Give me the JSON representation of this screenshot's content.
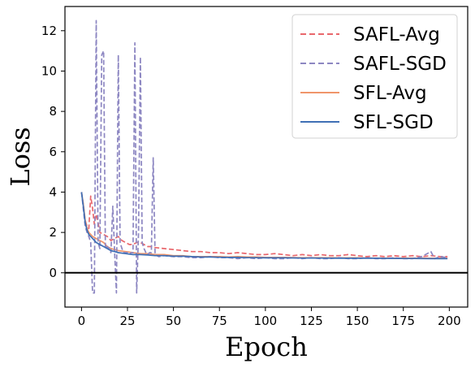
{
  "chart_data": {
    "type": "line",
    "xlabel": "Epoch",
    "ylabel": "Loss",
    "xlim": [
      -9,
      210
    ],
    "ylim": [
      -1.7,
      13.2
    ],
    "xticks": [
      0,
      25,
      50,
      75,
      100,
      125,
      150,
      175,
      200
    ],
    "yticks": [
      0,
      2,
      4,
      6,
      8,
      10,
      12
    ],
    "hline": 0,
    "legend_position": "top-right",
    "grid": false,
    "series": [
      {
        "name": "SAFL-Avg",
        "color": "#e9676c",
        "dash": "dashed",
        "points": [
          [
            0,
            4.0
          ],
          [
            1,
            3.4
          ],
          [
            2,
            2.6
          ],
          [
            3,
            2.3
          ],
          [
            4,
            2.2
          ],
          [
            5,
            3.8
          ],
          [
            6,
            3.2
          ],
          [
            7,
            2.4
          ],
          [
            8,
            2.9
          ],
          [
            9,
            2.5
          ],
          [
            10,
            2.0
          ],
          [
            12,
            1.9
          ],
          [
            14,
            1.8
          ],
          [
            16,
            1.6
          ],
          [
            18,
            1.7
          ],
          [
            20,
            1.8
          ],
          [
            22,
            1.6
          ],
          [
            24,
            1.5
          ],
          [
            26,
            1.4
          ],
          [
            28,
            1.4
          ],
          [
            30,
            1.5
          ],
          [
            32,
            1.5
          ],
          [
            34,
            1.4
          ],
          [
            36,
            1.3
          ],
          [
            38,
            1.3
          ],
          [
            40,
            1.25
          ],
          [
            45,
            1.2
          ],
          [
            50,
            1.15
          ],
          [
            55,
            1.1
          ],
          [
            60,
            1.05
          ],
          [
            65,
            1.05
          ],
          [
            70,
            1.0
          ],
          [
            75,
            1.0
          ],
          [
            80,
            0.95
          ],
          [
            85,
            1.0
          ],
          [
            90,
            0.95
          ],
          [
            95,
            0.9
          ],
          [
            100,
            0.9
          ],
          [
            105,
            0.95
          ],
          [
            110,
            0.9
          ],
          [
            115,
            0.85
          ],
          [
            120,
            0.9
          ],
          [
            125,
            0.85
          ],
          [
            130,
            0.9
          ],
          [
            135,
            0.85
          ],
          [
            140,
            0.85
          ],
          [
            145,
            0.9
          ],
          [
            150,
            0.85
          ],
          [
            155,
            0.8
          ],
          [
            160,
            0.85
          ],
          [
            165,
            0.8
          ],
          [
            170,
            0.85
          ],
          [
            175,
            0.8
          ],
          [
            180,
            0.85
          ],
          [
            185,
            0.8
          ],
          [
            190,
            0.85
          ],
          [
            195,
            0.8
          ],
          [
            199,
            0.8
          ]
        ]
      },
      {
        "name": "SAFL-SGD",
        "color": "#8d87c2",
        "dash": "dashed",
        "points": [
          [
            0,
            4.0
          ],
          [
            2,
            2.3
          ],
          [
            3,
            2.0
          ],
          [
            4,
            1.8
          ],
          [
            5,
            1.5
          ],
          [
            6,
            -1.0
          ],
          [
            7,
            -1.0
          ],
          [
            8,
            12.5
          ],
          [
            9,
            1.5
          ],
          [
            10,
            1.2
          ],
          [
            11,
            10.8
          ],
          [
            12,
            11.0
          ],
          [
            13,
            1.2
          ],
          [
            14,
            1.3
          ],
          [
            15,
            1.2
          ],
          [
            16,
            1.0
          ],
          [
            17,
            3.3
          ],
          [
            18,
            1.0
          ],
          [
            19,
            -1.0
          ],
          [
            20,
            10.8
          ],
          [
            21,
            1.5
          ],
          [
            22,
            1.2
          ],
          [
            23,
            1.0
          ],
          [
            24,
            1.0
          ],
          [
            25,
            1.0
          ],
          [
            26,
            0.9
          ],
          [
            27,
            1.0
          ],
          [
            28,
            1.0
          ],
          [
            29,
            11.4
          ],
          [
            30,
            -1.0
          ],
          [
            31,
            2.0
          ],
          [
            32,
            10.7
          ],
          [
            33,
            1.5
          ],
          [
            34,
            1.2
          ],
          [
            35,
            1.0
          ],
          [
            36,
            0.9
          ],
          [
            37,
            1.0
          ],
          [
            38,
            1.0
          ],
          [
            39,
            5.7
          ],
          [
            40,
            0.9
          ],
          [
            42,
            0.8
          ],
          [
            45,
            0.85
          ],
          [
            50,
            0.8
          ],
          [
            55,
            0.8
          ],
          [
            60,
            0.75
          ],
          [
            65,
            0.75
          ],
          [
            70,
            0.8
          ],
          [
            75,
            0.75
          ],
          [
            80,
            0.75
          ],
          [
            85,
            0.7
          ],
          [
            90,
            0.75
          ],
          [
            95,
            0.7
          ],
          [
            100,
            0.75
          ],
          [
            105,
            0.7
          ],
          [
            110,
            0.7
          ],
          [
            115,
            0.75
          ],
          [
            120,
            0.7
          ],
          [
            125,
            0.75
          ],
          [
            130,
            0.7
          ],
          [
            135,
            0.7
          ],
          [
            140,
            0.75
          ],
          [
            145,
            0.7
          ],
          [
            150,
            0.7
          ],
          [
            155,
            0.75
          ],
          [
            160,
            0.7
          ],
          [
            165,
            0.7
          ],
          [
            170,
            0.75
          ],
          [
            175,
            0.7
          ],
          [
            180,
            0.7
          ],
          [
            185,
            0.8
          ],
          [
            190,
            1.05
          ],
          [
            192,
            0.7
          ],
          [
            195,
            0.8
          ],
          [
            199,
            0.75
          ]
        ]
      },
      {
        "name": "SFL-Avg",
        "color": "#f0956a",
        "dash": "solid",
        "points": [
          [
            0,
            4.0
          ],
          [
            1,
            3.4
          ],
          [
            2,
            2.6
          ],
          [
            3,
            2.2
          ],
          [
            4,
            2.0
          ],
          [
            5,
            1.9
          ],
          [
            6,
            1.8
          ],
          [
            8,
            1.7
          ],
          [
            10,
            1.6
          ],
          [
            12,
            1.5
          ],
          [
            14,
            1.3
          ],
          [
            16,
            1.2
          ],
          [
            18,
            1.15
          ],
          [
            20,
            1.1
          ],
          [
            24,
            1.05
          ],
          [
            28,
            1.0
          ],
          [
            32,
            0.95
          ],
          [
            36,
            0.95
          ],
          [
            40,
            0.9
          ],
          [
            45,
            0.9
          ],
          [
            50,
            0.85
          ],
          [
            55,
            0.85
          ],
          [
            60,
            0.8
          ],
          [
            65,
            0.8
          ],
          [
            70,
            0.8
          ],
          [
            75,
            0.8
          ],
          [
            80,
            0.78
          ],
          [
            85,
            0.8
          ],
          [
            90,
            0.78
          ],
          [
            95,
            0.78
          ],
          [
            100,
            0.76
          ],
          [
            110,
            0.76
          ],
          [
            120,
            0.75
          ],
          [
            130,
            0.75
          ],
          [
            140,
            0.74
          ],
          [
            150,
            0.74
          ],
          [
            160,
            0.73
          ],
          [
            170,
            0.73
          ],
          [
            180,
            0.73
          ],
          [
            190,
            0.72
          ],
          [
            199,
            0.72
          ]
        ]
      },
      {
        "name": "SFL-SGD",
        "color": "#3f70b5",
        "dash": "solid",
        "points": [
          [
            0,
            4.0
          ],
          [
            1,
            3.3
          ],
          [
            2,
            2.5
          ],
          [
            3,
            2.1
          ],
          [
            4,
            1.9
          ],
          [
            5,
            1.8
          ],
          [
            6,
            1.7
          ],
          [
            8,
            1.5
          ],
          [
            10,
            1.4
          ],
          [
            12,
            1.3
          ],
          [
            14,
            1.2
          ],
          [
            16,
            1.1
          ],
          [
            18,
            1.05
          ],
          [
            20,
            1.0
          ],
          [
            24,
            0.95
          ],
          [
            28,
            0.9
          ],
          [
            32,
            0.9
          ],
          [
            36,
            0.88
          ],
          [
            40,
            0.85
          ],
          [
            45,
            0.85
          ],
          [
            50,
            0.82
          ],
          [
            55,
            0.82
          ],
          [
            60,
            0.8
          ],
          [
            65,
            0.78
          ],
          [
            70,
            0.78
          ],
          [
            75,
            0.77
          ],
          [
            80,
            0.76
          ],
          [
            85,
            0.76
          ],
          [
            90,
            0.75
          ],
          [
            95,
            0.75
          ],
          [
            100,
            0.74
          ],
          [
            110,
            0.74
          ],
          [
            120,
            0.73
          ],
          [
            130,
            0.73
          ],
          [
            140,
            0.72
          ],
          [
            150,
            0.72
          ],
          [
            160,
            0.72
          ],
          [
            170,
            0.71
          ],
          [
            180,
            0.71
          ],
          [
            190,
            0.7
          ],
          [
            199,
            0.7
          ]
        ]
      }
    ]
  }
}
